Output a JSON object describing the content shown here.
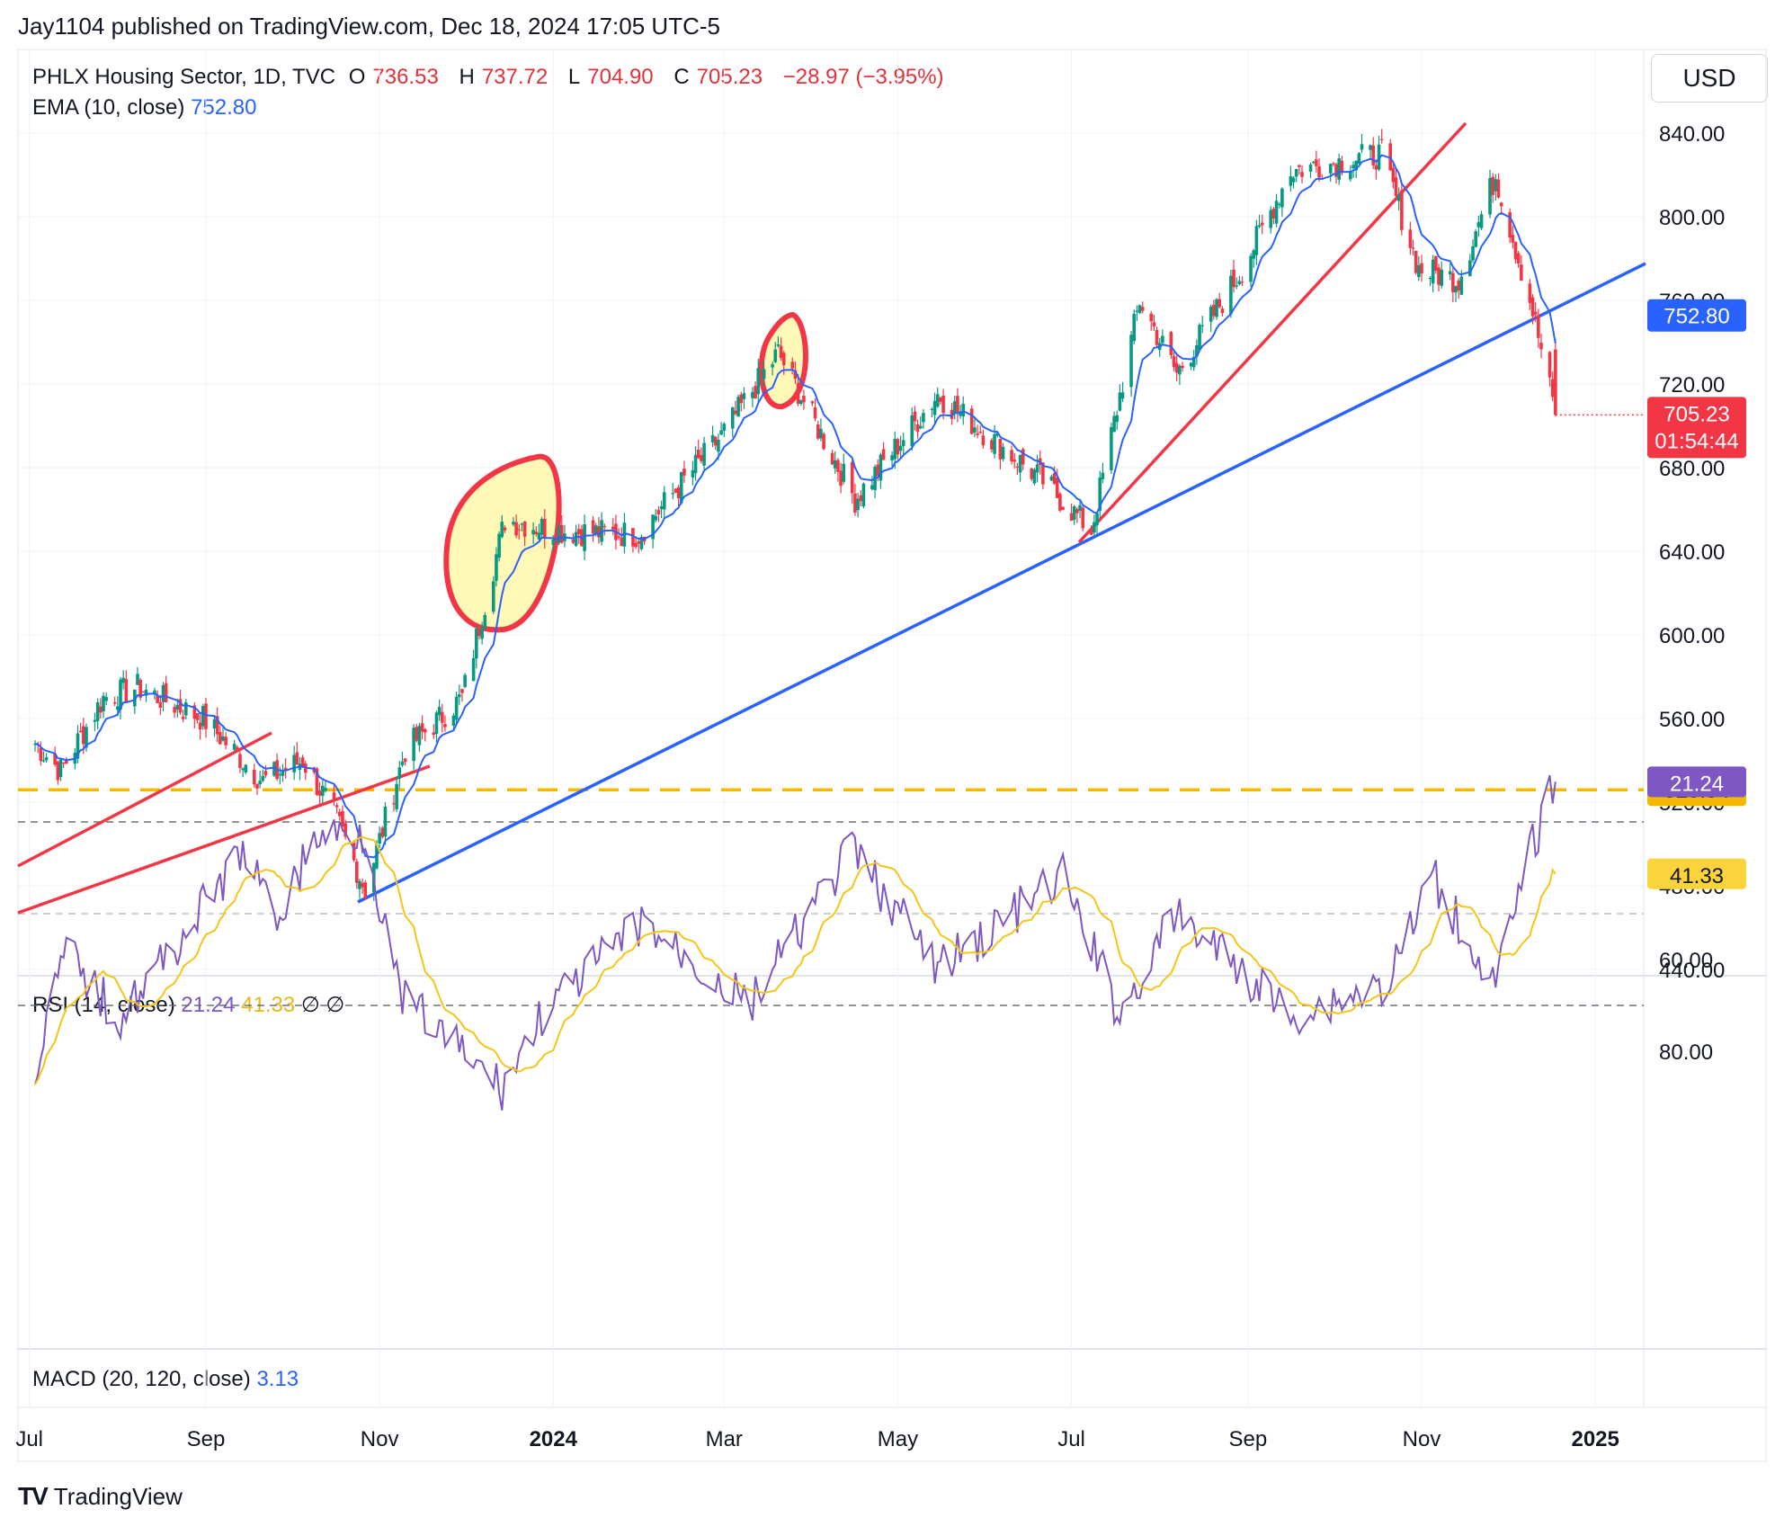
{
  "header": {
    "publisher_line": "Jay1104 published on TradingView.com, Dec 18, 2024 17:05 UTC-5"
  },
  "legend": {
    "symbol": "PHLX Housing Sector, 1D, TVC",
    "open_label": "O",
    "open": "736.53",
    "high_label": "H",
    "high": "737.72",
    "low_label": "L",
    "low": "704.90",
    "close_label": "C",
    "close": "705.23",
    "change": "−28.97 (−3.95%)",
    "ema_label": "EMA (10, close)",
    "ema_value": "752.80",
    "rsi_label": "RSI (14, close)",
    "rsi_value": "21.24",
    "rsi_ma_value": "41.33",
    "rsi_extra": "∅ ∅",
    "macd_label": "MACD (20, 120, close)",
    "macd_value": "3.13"
  },
  "currency": "USD",
  "price_tags": {
    "ema": "752.80",
    "close": "705.23",
    "countdown": "01:54:44",
    "hline": "525.94",
    "rsi_ma": "41.33",
    "rsi": "21.24"
  },
  "footer": {
    "brand": "TradingView"
  },
  "colors": {
    "up": "#089981",
    "down": "#f23645",
    "ema": "#2962ff",
    "trend_red": "#f23645",
    "trend_blue": "#2962ff",
    "hline": "#f5b800",
    "rsi": "#7e57c2",
    "rsi_ma": "#f5c518"
  },
  "chart_data": [
    {
      "type": "candlestick",
      "x_ticks": [
        "Jul",
        "Sep",
        "Nov",
        "2024",
        "Mar",
        "May",
        "Jul",
        "Sep",
        "Nov",
        "2025"
      ],
      "y_ticks": [
        "840.00",
        "800.00",
        "760.00",
        "720.00",
        "680.00",
        "640.00",
        "600.00",
        "560.00",
        "520.00",
        "480.00",
        "440.00"
      ],
      "ylim": [
        440,
        855
      ],
      "close_anchors": [
        {
          "date": "2023-07-03",
          "value": 548
        },
        {
          "date": "2023-07-12",
          "value": 535
        },
        {
          "date": "2023-07-27",
          "value": 570
        },
        {
          "date": "2023-08-08",
          "value": 575
        },
        {
          "date": "2023-08-31",
          "value": 560
        },
        {
          "date": "2023-09-21",
          "value": 530
        },
        {
          "date": "2023-10-05",
          "value": 540
        },
        {
          "date": "2023-10-16",
          "value": 515
        },
        {
          "date": "2023-10-27",
          "value": 478
        },
        {
          "date": "2023-11-10",
          "value": 545
        },
        {
          "date": "2023-11-30",
          "value": 570
        },
        {
          "date": "2023-12-15",
          "value": 655
        },
        {
          "date": "2024-01-02",
          "value": 650
        },
        {
          "date": "2024-01-31",
          "value": 648
        },
        {
          "date": "2024-02-29",
          "value": 695
        },
        {
          "date": "2024-03-20",
          "value": 735
        },
        {
          "date": "2024-04-16",
          "value": 665
        },
        {
          "date": "2024-05-15",
          "value": 715
        },
        {
          "date": "2024-06-20",
          "value": 675
        },
        {
          "date": "2024-07-08",
          "value": 650
        },
        {
          "date": "2024-07-25",
          "value": 760
        },
        {
          "date": "2024-08-07",
          "value": 725
        },
        {
          "date": "2024-08-30",
          "value": 775
        },
        {
          "date": "2024-09-16",
          "value": 822
        },
        {
          "date": "2024-10-18",
          "value": 830
        },
        {
          "date": "2024-10-31",
          "value": 775
        },
        {
          "date": "2024-11-14",
          "value": 770
        },
        {
          "date": "2024-11-27",
          "value": 820
        },
        {
          "date": "2024-12-10",
          "value": 755
        },
        {
          "date": "2024-12-18",
          "value": 705.23
        }
      ],
      "ema": {
        "period": 10,
        "last": 752.8
      },
      "horizontal_line": 525.94,
      "last_close": 705.23
    },
    {
      "type": "line",
      "name": "RSI (14, close)",
      "y_ticks": [
        "80.00",
        "60.00"
      ],
      "upper_band": 70,
      "middle_band": 50,
      "lower_band": 30,
      "ylim": [
        20,
        85
      ],
      "rsi_anchors": [
        {
          "date": "2023-07-03",
          "value": 83
        },
        {
          "date": "2023-07-14",
          "value": 58
        },
        {
          "date": "2023-08-01",
          "value": 73
        },
        {
          "date": "2023-08-20",
          "value": 58
        },
        {
          "date": "2023-09-15",
          "value": 36
        },
        {
          "date": "2023-09-25",
          "value": 52
        },
        {
          "date": "2023-10-10",
          "value": 33
        },
        {
          "date": "2023-10-27",
          "value": 32
        },
        {
          "date": "2023-11-08",
          "value": 68
        },
        {
          "date": "2023-12-14",
          "value": 88
        },
        {
          "date": "2023-12-28",
          "value": 72
        },
        {
          "date": "2024-02-01",
          "value": 52
        },
        {
          "date": "2024-03-10",
          "value": 70
        },
        {
          "date": "2024-04-15",
          "value": 36
        },
        {
          "date": "2024-05-15",
          "value": 62
        },
        {
          "date": "2024-06-28",
          "value": 42
        },
        {
          "date": "2024-07-18",
          "value": 72
        },
        {
          "date": "2024-08-07",
          "value": 50
        },
        {
          "date": "2024-09-16",
          "value": 72
        },
        {
          "date": "2024-10-20",
          "value": 65
        },
        {
          "date": "2024-11-05",
          "value": 42
        },
        {
          "date": "2024-11-27",
          "value": 66
        },
        {
          "date": "2024-12-10",
          "value": 35
        },
        {
          "date": "2024-12-18",
          "value": 21.24
        }
      ],
      "ma_last": 41.33,
      "last": 21.24
    }
  ]
}
